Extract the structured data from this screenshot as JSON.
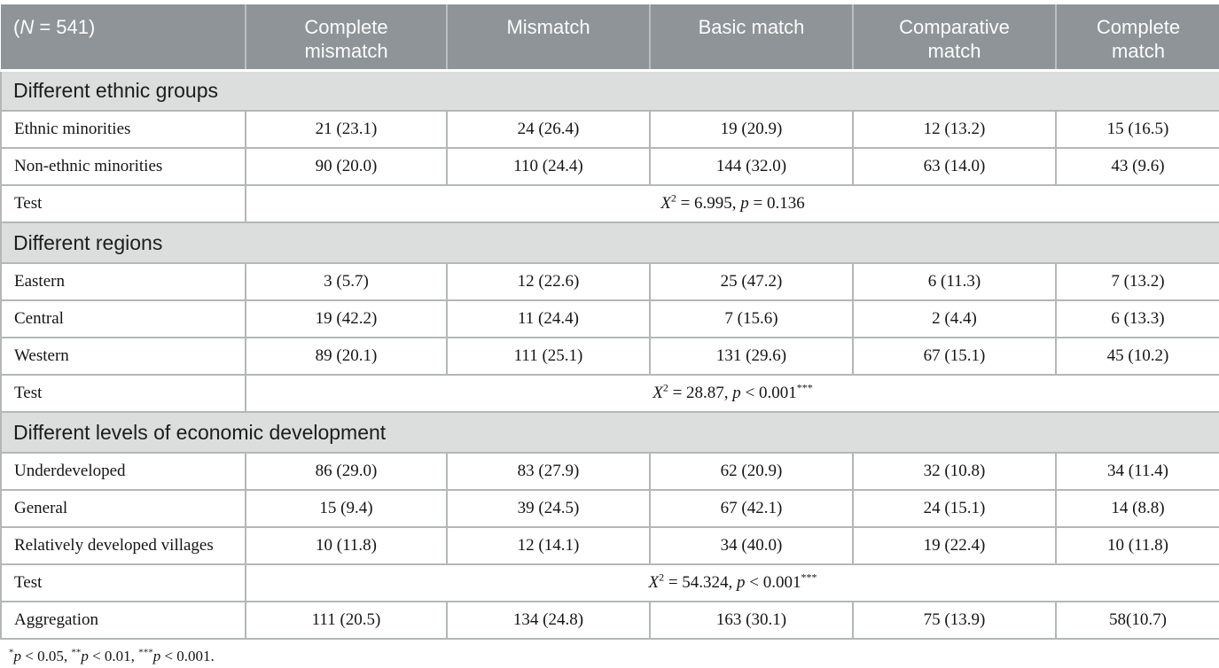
{
  "colors": {
    "header_bg": "#8e9497",
    "header_text": "#fcfcfc",
    "band_bg": "#dcdedd",
    "grid_line": "#b4b7b6",
    "body_text": "#151515"
  },
  "table": {
    "header": {
      "col0_parts": [
        {
          "t": "("
        },
        {
          "i": "N"
        },
        {
          "t": " = 541)"
        }
      ],
      "columns": [
        "Complete\nmismatch",
        "Mismatch",
        "Basic match",
        "Comparative\nmatch",
        "Complete\nmatch"
      ]
    },
    "sections": [
      {
        "title": "Different ethnic groups",
        "rows": [
          {
            "label": "Ethnic minorities",
            "values": [
              "21 (23.1)",
              "24 (26.4)",
              "19 (20.9)",
              "12 (13.2)",
              "15 (16.5)"
            ]
          },
          {
            "label": "Non-ethnic minorities",
            "values": [
              "90 (20.0)",
              "110 (24.4)",
              "144 (32.0)",
              "63 (14.0)",
              "43 (9.6)"
            ]
          }
        ],
        "test": {
          "label": "Test",
          "parts": [
            {
              "i": "X"
            },
            {
              "sup": "2"
            },
            {
              "t": " = 6.995, "
            },
            {
              "i": "p"
            },
            {
              "t": " = 0.136"
            }
          ]
        }
      },
      {
        "title": "Different regions",
        "rows": [
          {
            "label": "Eastern",
            "values": [
              "3 (5.7)",
              "12 (22.6)",
              "25 (47.2)",
              "6 (11.3)",
              "7 (13.2)"
            ]
          },
          {
            "label": "Central",
            "values": [
              "19 (42.2)",
              "11 (24.4)",
              "7 (15.6)",
              "2 (4.4)",
              "6 (13.3)"
            ]
          },
          {
            "label": "Western",
            "values": [
              "89 (20.1)",
              "111 (25.1)",
              "131 (29.6)",
              "67 (15.1)",
              "45 (10.2)"
            ]
          }
        ],
        "test": {
          "label": "Test",
          "parts": [
            {
              "i": "X"
            },
            {
              "sup": "2"
            },
            {
              "t": " = 28.87, "
            },
            {
              "i": "p"
            },
            {
              "t": " < 0.001"
            },
            {
              "sup": "***"
            }
          ]
        }
      },
      {
        "title": "Different levels of economic development",
        "rows": [
          {
            "label": "Underdeveloped",
            "values": [
              "86 (29.0)",
              "83 (27.9)",
              "62 (20.9)",
              "32 (10.8)",
              "34 (11.4)"
            ]
          },
          {
            "label": "General",
            "values": [
              "15 (9.4)",
              "39 (24.5)",
              "67 (42.1)",
              "24 (15.1)",
              "14 (8.8)"
            ]
          },
          {
            "label": "Relatively developed villages",
            "values": [
              "10 (11.8)",
              "12 (14.1)",
              "34 (40.0)",
              "19 (22.4)",
              "10 (11.8)"
            ]
          }
        ],
        "test": {
          "label": "Test",
          "parts": [
            {
              "i": "X"
            },
            {
              "sup": "2"
            },
            {
              "t": " = 54.324, "
            },
            {
              "i": "p"
            },
            {
              "t": " < 0.001"
            },
            {
              "sup": "***"
            }
          ]
        }
      }
    ],
    "aggregate": {
      "label": "Aggregation",
      "values": [
        "111 (20.5)",
        "134 (24.8)",
        "163 (30.1)",
        "75 (13.9)",
        "58(10.7)"
      ]
    },
    "footnote_parts": [
      {
        "sup": "*"
      },
      {
        "i": "p"
      },
      {
        "t": " < 0.05, "
      },
      {
        "sup": "**"
      },
      {
        "i": "p"
      },
      {
        "t": " < 0.01, "
      },
      {
        "sup": "***"
      },
      {
        "i": "p"
      },
      {
        "t": " < 0.001."
      }
    ]
  }
}
